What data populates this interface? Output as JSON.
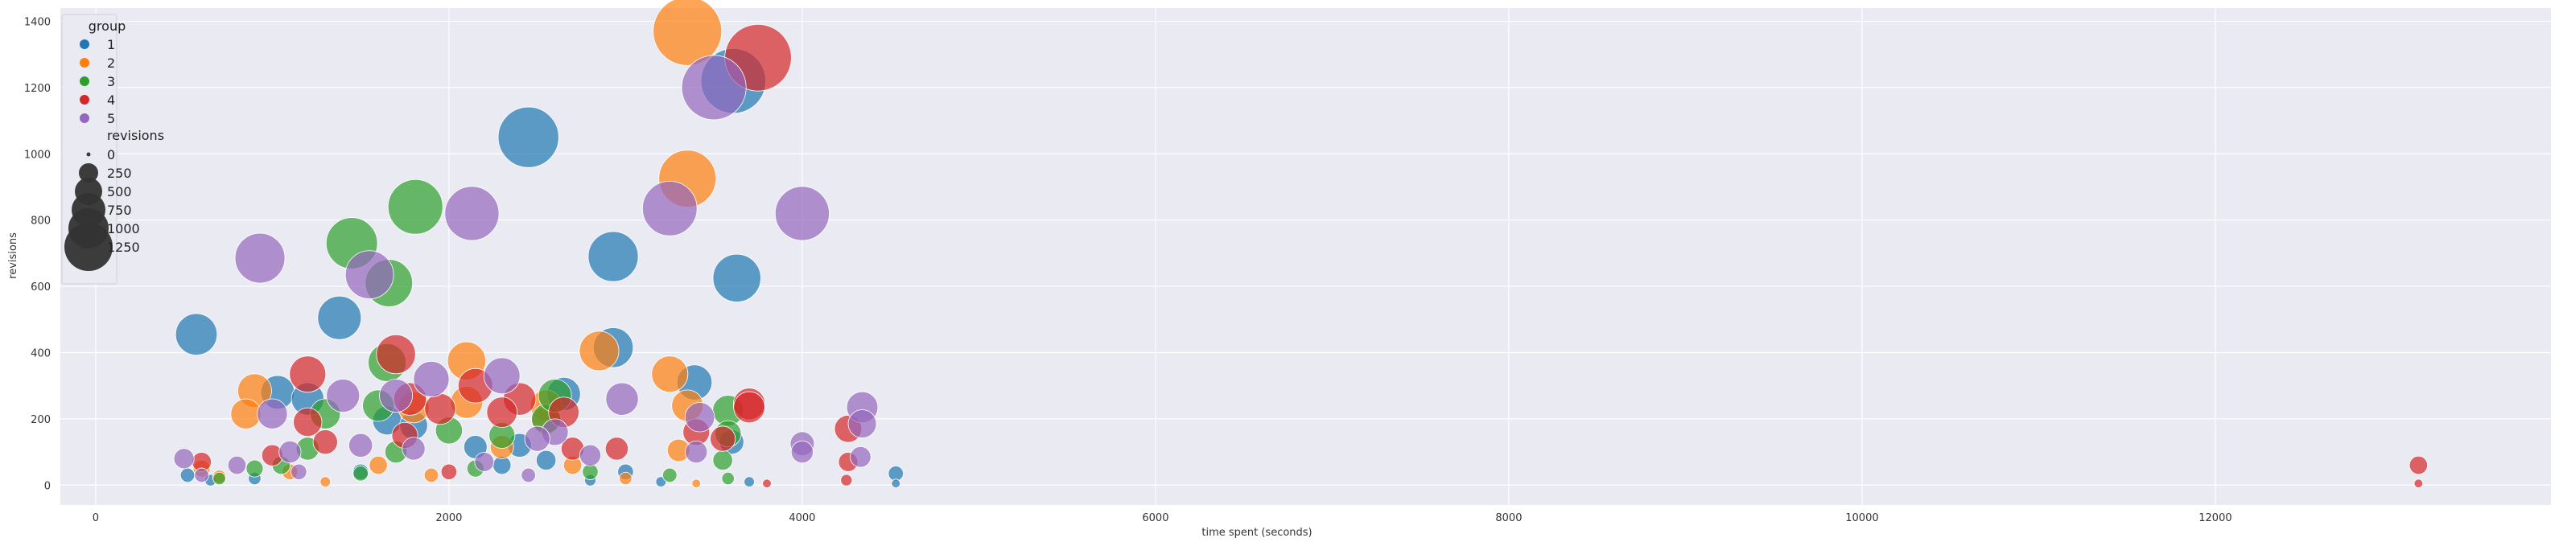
{
  "chart_data": {
    "type": "scatter",
    "xlabel": "time spent (seconds)",
    "ylabel": "revisions",
    "xlim": [
      -200,
      13900
    ],
    "ylim": [
      -60,
      1440
    ],
    "xticks": [
      0,
      2000,
      4000,
      6000,
      8000,
      10000,
      12000
    ],
    "yticks": [
      0,
      200,
      400,
      600,
      800,
      1000,
      1200,
      1400
    ],
    "grid": true,
    "legend": {
      "position": "top-left",
      "hue_title": "group",
      "size_title": "revisions",
      "size_entries": [
        "0",
        "250",
        "500",
        "750",
        "1000",
        "1250"
      ]
    },
    "series": [
      {
        "name": "1",
        "color": "#1f77b4",
        "points": [
          [
            570,
            455
          ],
          [
            1380,
            505
          ],
          [
            2450,
            1050
          ],
          [
            2930,
            690
          ],
          [
            2930,
            415
          ],
          [
            3610,
            1220
          ],
          [
            3630,
            625
          ],
          [
            3390,
            310
          ],
          [
            2650,
            275
          ],
          [
            1030,
            280
          ],
          [
            1200,
            260
          ],
          [
            1650,
            195
          ],
          [
            1800,
            180
          ],
          [
            2150,
            115
          ],
          [
            2400,
            120
          ],
          [
            2550,
            75
          ],
          [
            3600,
            130
          ],
          [
            3000,
            40
          ],
          [
            4530,
            35
          ],
          [
            4530,
            5
          ],
          [
            3200,
            10
          ],
          [
            1500,
            40
          ],
          [
            900,
            20
          ],
          [
            650,
            15
          ],
          [
            520,
            30
          ],
          [
            2300,
            60
          ],
          [
            2800,
            15
          ],
          [
            3700,
            10
          ]
        ]
      },
      {
        "name": "2",
        "color": "#ff7f0e",
        "points": [
          [
            3350,
            1370
          ],
          [
            3350,
            925
          ],
          [
            2850,
            405
          ],
          [
            3250,
            335
          ],
          [
            3350,
            240
          ],
          [
            2100,
            375
          ],
          [
            2100,
            250
          ],
          [
            1800,
            235
          ],
          [
            900,
            285
          ],
          [
            850,
            215
          ],
          [
            2550,
            240
          ],
          [
            2550,
            195
          ],
          [
            3300,
            105
          ],
          [
            1600,
            60
          ],
          [
            1900,
            30
          ],
          [
            2300,
            115
          ],
          [
            1100,
            40
          ],
          [
            700,
            25
          ],
          [
            2700,
            60
          ],
          [
            3000,
            20
          ],
          [
            1300,
            10
          ],
          [
            3400,
            5
          ],
          [
            600,
            50
          ]
        ]
      },
      {
        "name": "3",
        "color": "#2ca02c",
        "points": [
          [
            1810,
            840
          ],
          [
            1450,
            730
          ],
          [
            1660,
            610
          ],
          [
            1650,
            370
          ],
          [
            1600,
            240
          ],
          [
            2000,
            165
          ],
          [
            2300,
            150
          ],
          [
            2550,
            200
          ],
          [
            2600,
            270
          ],
          [
            1300,
            215
          ],
          [
            3580,
            225
          ],
          [
            3580,
            155
          ],
          [
            3550,
            75
          ],
          [
            3580,
            20
          ],
          [
            1200,
            110
          ],
          [
            1500,
            35
          ],
          [
            900,
            50
          ],
          [
            1050,
            60
          ],
          [
            1700,
            100
          ],
          [
            2150,
            50
          ],
          [
            2800,
            40
          ],
          [
            3250,
            30
          ],
          [
            700,
            20
          ]
        ]
      },
      {
        "name": "4",
        "color": "#d62728",
        "points": [
          [
            3750,
            1290
          ],
          [
            1700,
            395
          ],
          [
            1200,
            335
          ],
          [
            1780,
            260
          ],
          [
            1950,
            230
          ],
          [
            2400,
            260
          ],
          [
            2300,
            220
          ],
          [
            1200,
            190
          ],
          [
            3400,
            160
          ],
          [
            3700,
            245
          ],
          [
            3700,
            235
          ],
          [
            4260,
            170
          ],
          [
            4260,
            70
          ],
          [
            2700,
            110
          ],
          [
            2950,
            110
          ],
          [
            1750,
            150
          ],
          [
            1300,
            130
          ],
          [
            1000,
            90
          ],
          [
            2150,
            300
          ],
          [
            2650,
            220
          ],
          [
            3550,
            140
          ],
          [
            600,
            70
          ],
          [
            2000,
            40
          ],
          [
            13150,
            60
          ],
          [
            13150,
            5
          ],
          [
            3800,
            5
          ],
          [
            4250,
            15
          ]
        ]
      },
      {
        "name": "5",
        "color": "#9467bd",
        "points": [
          [
            3500,
            1200
          ],
          [
            4000,
            820
          ],
          [
            3250,
            835
          ],
          [
            2130,
            820
          ],
          [
            930,
            685
          ],
          [
            1550,
            635
          ],
          [
            2300,
            330
          ],
          [
            2980,
            260
          ],
          [
            1000,
            215
          ],
          [
            1400,
            270
          ],
          [
            1700,
            270
          ],
          [
            1900,
            320
          ],
          [
            2600,
            160
          ],
          [
            2500,
            140
          ],
          [
            4340,
            235
          ],
          [
            4340,
            185
          ],
          [
            4000,
            125
          ],
          [
            4000,
            100
          ],
          [
            3420,
            205
          ],
          [
            3400,
            100
          ],
          [
            1500,
            120
          ],
          [
            1100,
            100
          ],
          [
            800,
            60
          ],
          [
            500,
            80
          ],
          [
            2200,
            70
          ],
          [
            2800,
            90
          ],
          [
            4330,
            85
          ],
          [
            1800,
            110
          ],
          [
            600,
            30
          ],
          [
            2450,
            30
          ],
          [
            1150,
            40
          ]
        ]
      }
    ]
  }
}
